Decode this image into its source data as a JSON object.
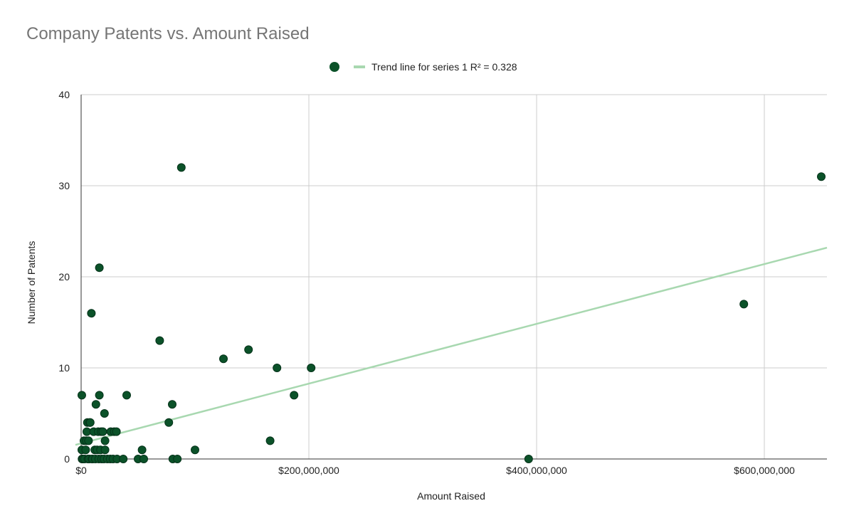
{
  "chart_data": {
    "type": "scatter",
    "title": "Company Patents vs. Amount Raised",
    "xlabel": "Amount Raised",
    "ylabel": "Number of Patents",
    "xlim": [
      0,
      655000000
    ],
    "ylim": [
      0,
      40
    ],
    "x_ticks": [
      {
        "value": 0,
        "label": "$0"
      },
      {
        "value": 200000000,
        "label": "$200,000,000"
      },
      {
        "value": 400000000,
        "label": "$400,000,000"
      },
      {
        "value": 600000000,
        "label": "$600,000,000"
      }
    ],
    "y_ticks": [
      {
        "value": 0,
        "label": "0"
      },
      {
        "value": 10,
        "label": "10"
      },
      {
        "value": 20,
        "label": "20"
      },
      {
        "value": 30,
        "label": "30"
      },
      {
        "value": 40,
        "label": "40"
      }
    ],
    "grid": true,
    "legend_position": "top",
    "legend": {
      "trend_label": "Trend line for series 1 R² = 0.328"
    },
    "colors": {
      "points": "#0b5229",
      "trend": "#a8d8b0",
      "grid": "#cccccc",
      "axis": "#333333"
    },
    "trendline": {
      "x": [
        -5000000,
        655000000
      ],
      "y": [
        1.55,
        23.2
      ],
      "r_squared": 0.328
    },
    "series": [
      {
        "points": [
          [
            600000,
            7
          ],
          [
            600000,
            1
          ],
          [
            800000,
            0
          ],
          [
            1500000,
            0
          ],
          [
            2500000,
            2
          ],
          [
            3000000,
            0
          ],
          [
            4000000,
            1
          ],
          [
            4500000,
            2
          ],
          [
            5000000,
            3
          ],
          [
            5500000,
            4
          ],
          [
            6000000,
            0
          ],
          [
            6500000,
            2
          ],
          [
            7000000,
            0
          ],
          [
            7500000,
            4
          ],
          [
            8000000,
            4
          ],
          [
            9000000,
            16
          ],
          [
            9500000,
            0
          ],
          [
            10000000,
            0
          ],
          [
            11000000,
            3
          ],
          [
            12000000,
            1
          ],
          [
            12500000,
            0
          ],
          [
            13000000,
            6
          ],
          [
            14000000,
            1
          ],
          [
            15000000,
            3
          ],
          [
            15500000,
            0
          ],
          [
            16000000,
            7
          ],
          [
            16000000,
            21
          ],
          [
            17000000,
            1
          ],
          [
            17500000,
            3
          ],
          [
            18000000,
            0
          ],
          [
            19000000,
            3
          ],
          [
            20000000,
            0
          ],
          [
            20500000,
            5
          ],
          [
            21000000,
            2
          ],
          [
            21000000,
            1
          ],
          [
            23000000,
            0
          ],
          [
            25500000,
            0
          ],
          [
            26000000,
            3
          ],
          [
            28000000,
            0
          ],
          [
            29000000,
            3
          ],
          [
            31000000,
            3
          ],
          [
            31500000,
            0
          ],
          [
            37000000,
            0
          ],
          [
            40000000,
            7
          ],
          [
            50000000,
            0
          ],
          [
            53500000,
            1
          ],
          [
            55000000,
            0
          ],
          [
            69000000,
            13
          ],
          [
            77000000,
            4
          ],
          [
            80000000,
            6
          ],
          [
            80500000,
            0
          ],
          [
            84500000,
            0
          ],
          [
            88000000,
            32
          ],
          [
            100000000,
            1
          ],
          [
            125000000,
            11
          ],
          [
            147000000,
            12
          ],
          [
            166000000,
            2
          ],
          [
            172000000,
            10
          ],
          [
            187000000,
            7
          ],
          [
            202000000,
            10
          ],
          [
            393000000,
            0
          ],
          [
            582000000,
            17
          ],
          [
            650000000,
            31
          ]
        ]
      }
    ]
  }
}
